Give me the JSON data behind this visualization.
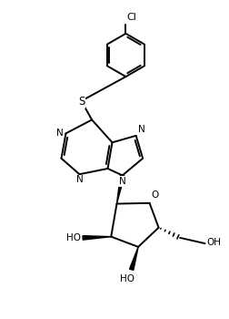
{
  "background": "#ffffff",
  "line_color": "#000000",
  "line_width": 1.4,
  "font_size": 7.5,
  "figsize": [
    2.52,
    3.5
  ],
  "dpi": 100,
  "xlim": [
    0,
    10
  ],
  "ylim": [
    0,
    14
  ]
}
